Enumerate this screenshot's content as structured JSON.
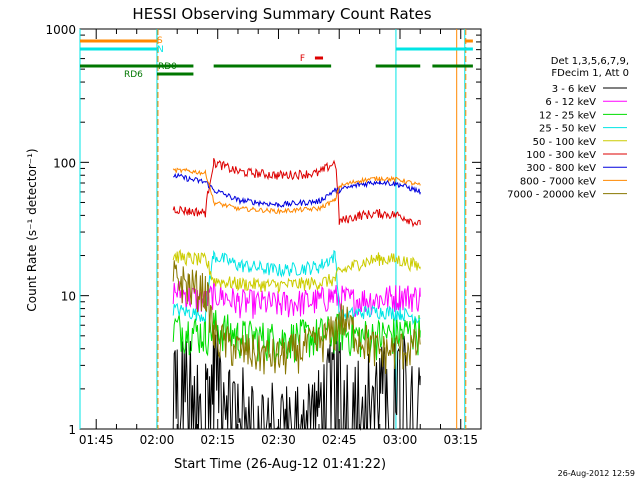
{
  "chart_data": {
    "type": "line",
    "title": "HESSI Observing Summary Count Rates",
    "xlabel": "Start Time (26-Aug-12 01:41:22)",
    "ylabel": "Count Rate (s⁻¹ detector⁻¹)",
    "yscale": "log",
    "ylim": [
      1,
      1000
    ],
    "xlim": [
      "01:41",
      "03:20"
    ],
    "x_ticks": [
      "01:45",
      "02:00",
      "02:15",
      "02:30",
      "02:45",
      "03:00",
      "03:15"
    ],
    "y_ticks": [
      "1",
      "10",
      "100",
      "1000"
    ],
    "legend_header": [
      "Det 1,3,5,6,7,9,",
      "FDecim 1, Att 0"
    ],
    "legend_position": "right",
    "footer_date": "26-Aug-2012 12:59",
    "series": [
      {
        "name": "3 - 6 keV",
        "color": "#000000",
        "points": [
          [
            "01:48",
            null
          ],
          [
            "02:04",
            3
          ],
          [
            "02:08",
            2.5
          ],
          [
            "02:12",
            2
          ],
          [
            "02:14",
            3.5
          ],
          [
            "02:18",
            1.8
          ],
          [
            "02:25",
            1.3
          ],
          [
            "02:32",
            1.2
          ],
          [
            "02:40",
            1.5
          ],
          [
            "02:45",
            3
          ],
          [
            "02:50",
            2
          ],
          [
            "02:55",
            2.2
          ],
          [
            "03:00",
            2.8
          ],
          [
            "03:05",
            2.5
          ]
        ]
      },
      {
        "name": "6 - 12 keV",
        "color": "#ff00ff",
        "points": [
          [
            "02:04",
            11
          ],
          [
            "02:08",
            10
          ],
          [
            "02:12",
            9
          ],
          [
            "02:14",
            10.5
          ],
          [
            "02:20",
            9
          ],
          [
            "02:30",
            8.7
          ],
          [
            "02:40",
            9.2
          ],
          [
            "02:43",
            10
          ],
          [
            "02:48",
            9.3
          ],
          [
            "02:55",
            9.5
          ],
          [
            "03:00",
            10
          ],
          [
            "03:05",
            9.8
          ]
        ]
      },
      {
        "name": "12 - 25 keV",
        "color": "#00dd00",
        "points": [
          [
            "02:04",
            5.8
          ],
          [
            "02:08",
            5.5
          ],
          [
            "02:12",
            5.2
          ],
          [
            "02:14",
            6
          ],
          [
            "02:20",
            5
          ],
          [
            "02:30",
            4.7
          ],
          [
            "02:40",
            5.1
          ],
          [
            "02:45",
            5.5
          ],
          [
            "02:50",
            5
          ],
          [
            "02:55",
            5
          ],
          [
            "03:00",
            5.3
          ],
          [
            "03:05",
            5.5
          ]
        ]
      },
      {
        "name": "25 - 50 keV",
        "color": "#00e5e5",
        "points": [
          [
            "02:04",
            8
          ],
          [
            "02:08",
            7.5
          ],
          [
            "02:12",
            7.1
          ],
          [
            "02:14",
            20
          ],
          [
            "02:20",
            17
          ],
          [
            "02:30",
            15.5
          ],
          [
            "02:40",
            16.5
          ],
          [
            "02:44",
            20
          ],
          [
            "02:45",
            7
          ],
          [
            "02:50",
            7.5
          ],
          [
            "02:55",
            7.6
          ],
          [
            "03:00",
            7.4
          ],
          [
            "03:05",
            6.8
          ]
        ]
      },
      {
        "name": "50 - 100 keV",
        "color": "#cccc00",
        "points": [
          [
            "02:04",
            20
          ],
          [
            "02:08",
            19
          ],
          [
            "02:12",
            18.5
          ],
          [
            "02:14",
            13
          ],
          [
            "02:20",
            12.3
          ],
          [
            "02:30",
            12
          ],
          [
            "02:40",
            12.5
          ],
          [
            "02:44",
            13.3
          ],
          [
            "02:45",
            15
          ],
          [
            "02:50",
            17.5
          ],
          [
            "02:55",
            19
          ],
          [
            "03:00",
            18.5
          ],
          [
            "03:05",
            16.5
          ]
        ]
      },
      {
        "name": "100 - 300 keV",
        "color": "#dd0000",
        "points": [
          [
            "02:04",
            45
          ],
          [
            "02:08",
            43
          ],
          [
            "02:12",
            42
          ],
          [
            "02:14",
            100
          ],
          [
            "02:20",
            85
          ],
          [
            "02:30",
            80
          ],
          [
            "02:40",
            83
          ],
          [
            "02:44",
            100
          ],
          [
            "02:45",
            36
          ],
          [
            "02:50",
            40
          ],
          [
            "02:55",
            41.5
          ],
          [
            "03:00",
            40
          ],
          [
            "03:05",
            34
          ]
        ]
      },
      {
        "name": "300 - 800 keV",
        "color": "#0000dd",
        "points": [
          [
            "02:04",
            80
          ],
          [
            "02:08",
            75
          ],
          [
            "02:12",
            71
          ],
          [
            "02:14",
            62
          ],
          [
            "02:20",
            52
          ],
          [
            "02:30",
            48
          ],
          [
            "02:40",
            51
          ],
          [
            "02:44",
            62
          ],
          [
            "02:45",
            62
          ],
          [
            "02:50",
            68
          ],
          [
            "02:55",
            72
          ],
          [
            "03:00",
            68
          ],
          [
            "03:05",
            60
          ]
        ]
      },
      {
        "name": "800 - 7000 keV",
        "color": "#ff8800",
        "points": [
          [
            "02:04",
            87
          ],
          [
            "02:08",
            86
          ],
          [
            "02:12",
            83
          ],
          [
            "02:14",
            50
          ],
          [
            "02:20",
            45
          ],
          [
            "02:30",
            43
          ],
          [
            "02:40",
            45
          ],
          [
            "02:44",
            52
          ],
          [
            "02:45",
            66
          ],
          [
            "02:50",
            73
          ],
          [
            "02:55",
            76
          ],
          [
            "03:00",
            74
          ],
          [
            "03:05",
            67
          ]
        ]
      },
      {
        "name": "7000 - 20000 keV",
        "color": "#887700",
        "points": [
          [
            "02:04",
            14
          ],
          [
            "02:08",
            12
          ],
          [
            "02:12",
            11
          ],
          [
            "02:14",
            5
          ],
          [
            "02:20",
            4
          ],
          [
            "02:30",
            3.5
          ],
          [
            "02:40",
            4.5
          ],
          [
            "02:44",
            5.5
          ],
          [
            "02:45",
            7
          ],
          [
            "02:50",
            5
          ],
          [
            "02:55",
            3.8
          ],
          [
            "03:00",
            4
          ],
          [
            "03:05",
            4.3
          ]
        ]
      }
    ],
    "state_bars": [
      {
        "label": "S",
        "color": "#ff8800",
        "segments": [
          [
            "01:41",
            "02:00"
          ],
          [
            "03:16",
            "03:18"
          ]
        ]
      },
      {
        "label": "N",
        "color": "#00e5e5",
        "segments": [
          [
            "01:41",
            "02:00"
          ],
          [
            "02:59",
            "03:18"
          ]
        ]
      },
      {
        "label": "RD0",
        "color": "#007700",
        "segments": [
          [
            "01:41",
            "02:09"
          ],
          [
            "02:14",
            "02:43"
          ],
          [
            "02:54",
            "03:05"
          ],
          [
            "03:08",
            "03:18"
          ]
        ]
      },
      {
        "label": "RD6",
        "color": "#007700",
        "segments": [
          [
            "02:00",
            "02:09"
          ]
        ]
      },
      {
        "label": "F",
        "color": "#dd0000",
        "segments": [
          [
            "02:39",
            "02:41"
          ]
        ]
      }
    ],
    "vertical_lines": [
      {
        "time": "01:41",
        "color": "#00e5e5",
        "style": "solid"
      },
      {
        "time": "02:00",
        "color": "#00e5e5",
        "style": "solid"
      },
      {
        "time": "02:00",
        "color": "#ff8800",
        "style": "dashed"
      },
      {
        "time": "02:59",
        "color": "#00e5e5",
        "style": "solid"
      },
      {
        "time": "03:14",
        "color": "#ff8800",
        "style": "solid"
      },
      {
        "time": "03:16",
        "color": "#00e5e5",
        "style": "solid"
      },
      {
        "time": "03:16",
        "color": "#ff8800",
        "style": "dashed"
      }
    ]
  }
}
